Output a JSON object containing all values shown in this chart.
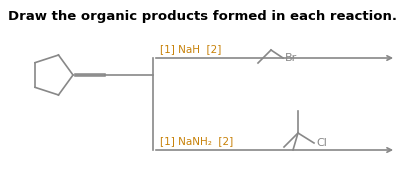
{
  "title": "Draw the organic products formed in each reaction.",
  "title_color": "#000000",
  "title_fontsize": 9.5,
  "title_bold": true,
  "bg_color": "#ffffff",
  "reaction_color": "#888888",
  "label_color": "#c8820a",
  "arrow_color": "#888888",
  "structure_color": "#888888",
  "reaction1_label": "[1] NaH  [2]",
  "reaction2_label": "[1] NaNH₂  [2]",
  "allyl_bromide_label": "Br",
  "tert_chloride_label": "Cl",
  "fig_width": 4.07,
  "fig_height": 1.93,
  "dpi": 100
}
